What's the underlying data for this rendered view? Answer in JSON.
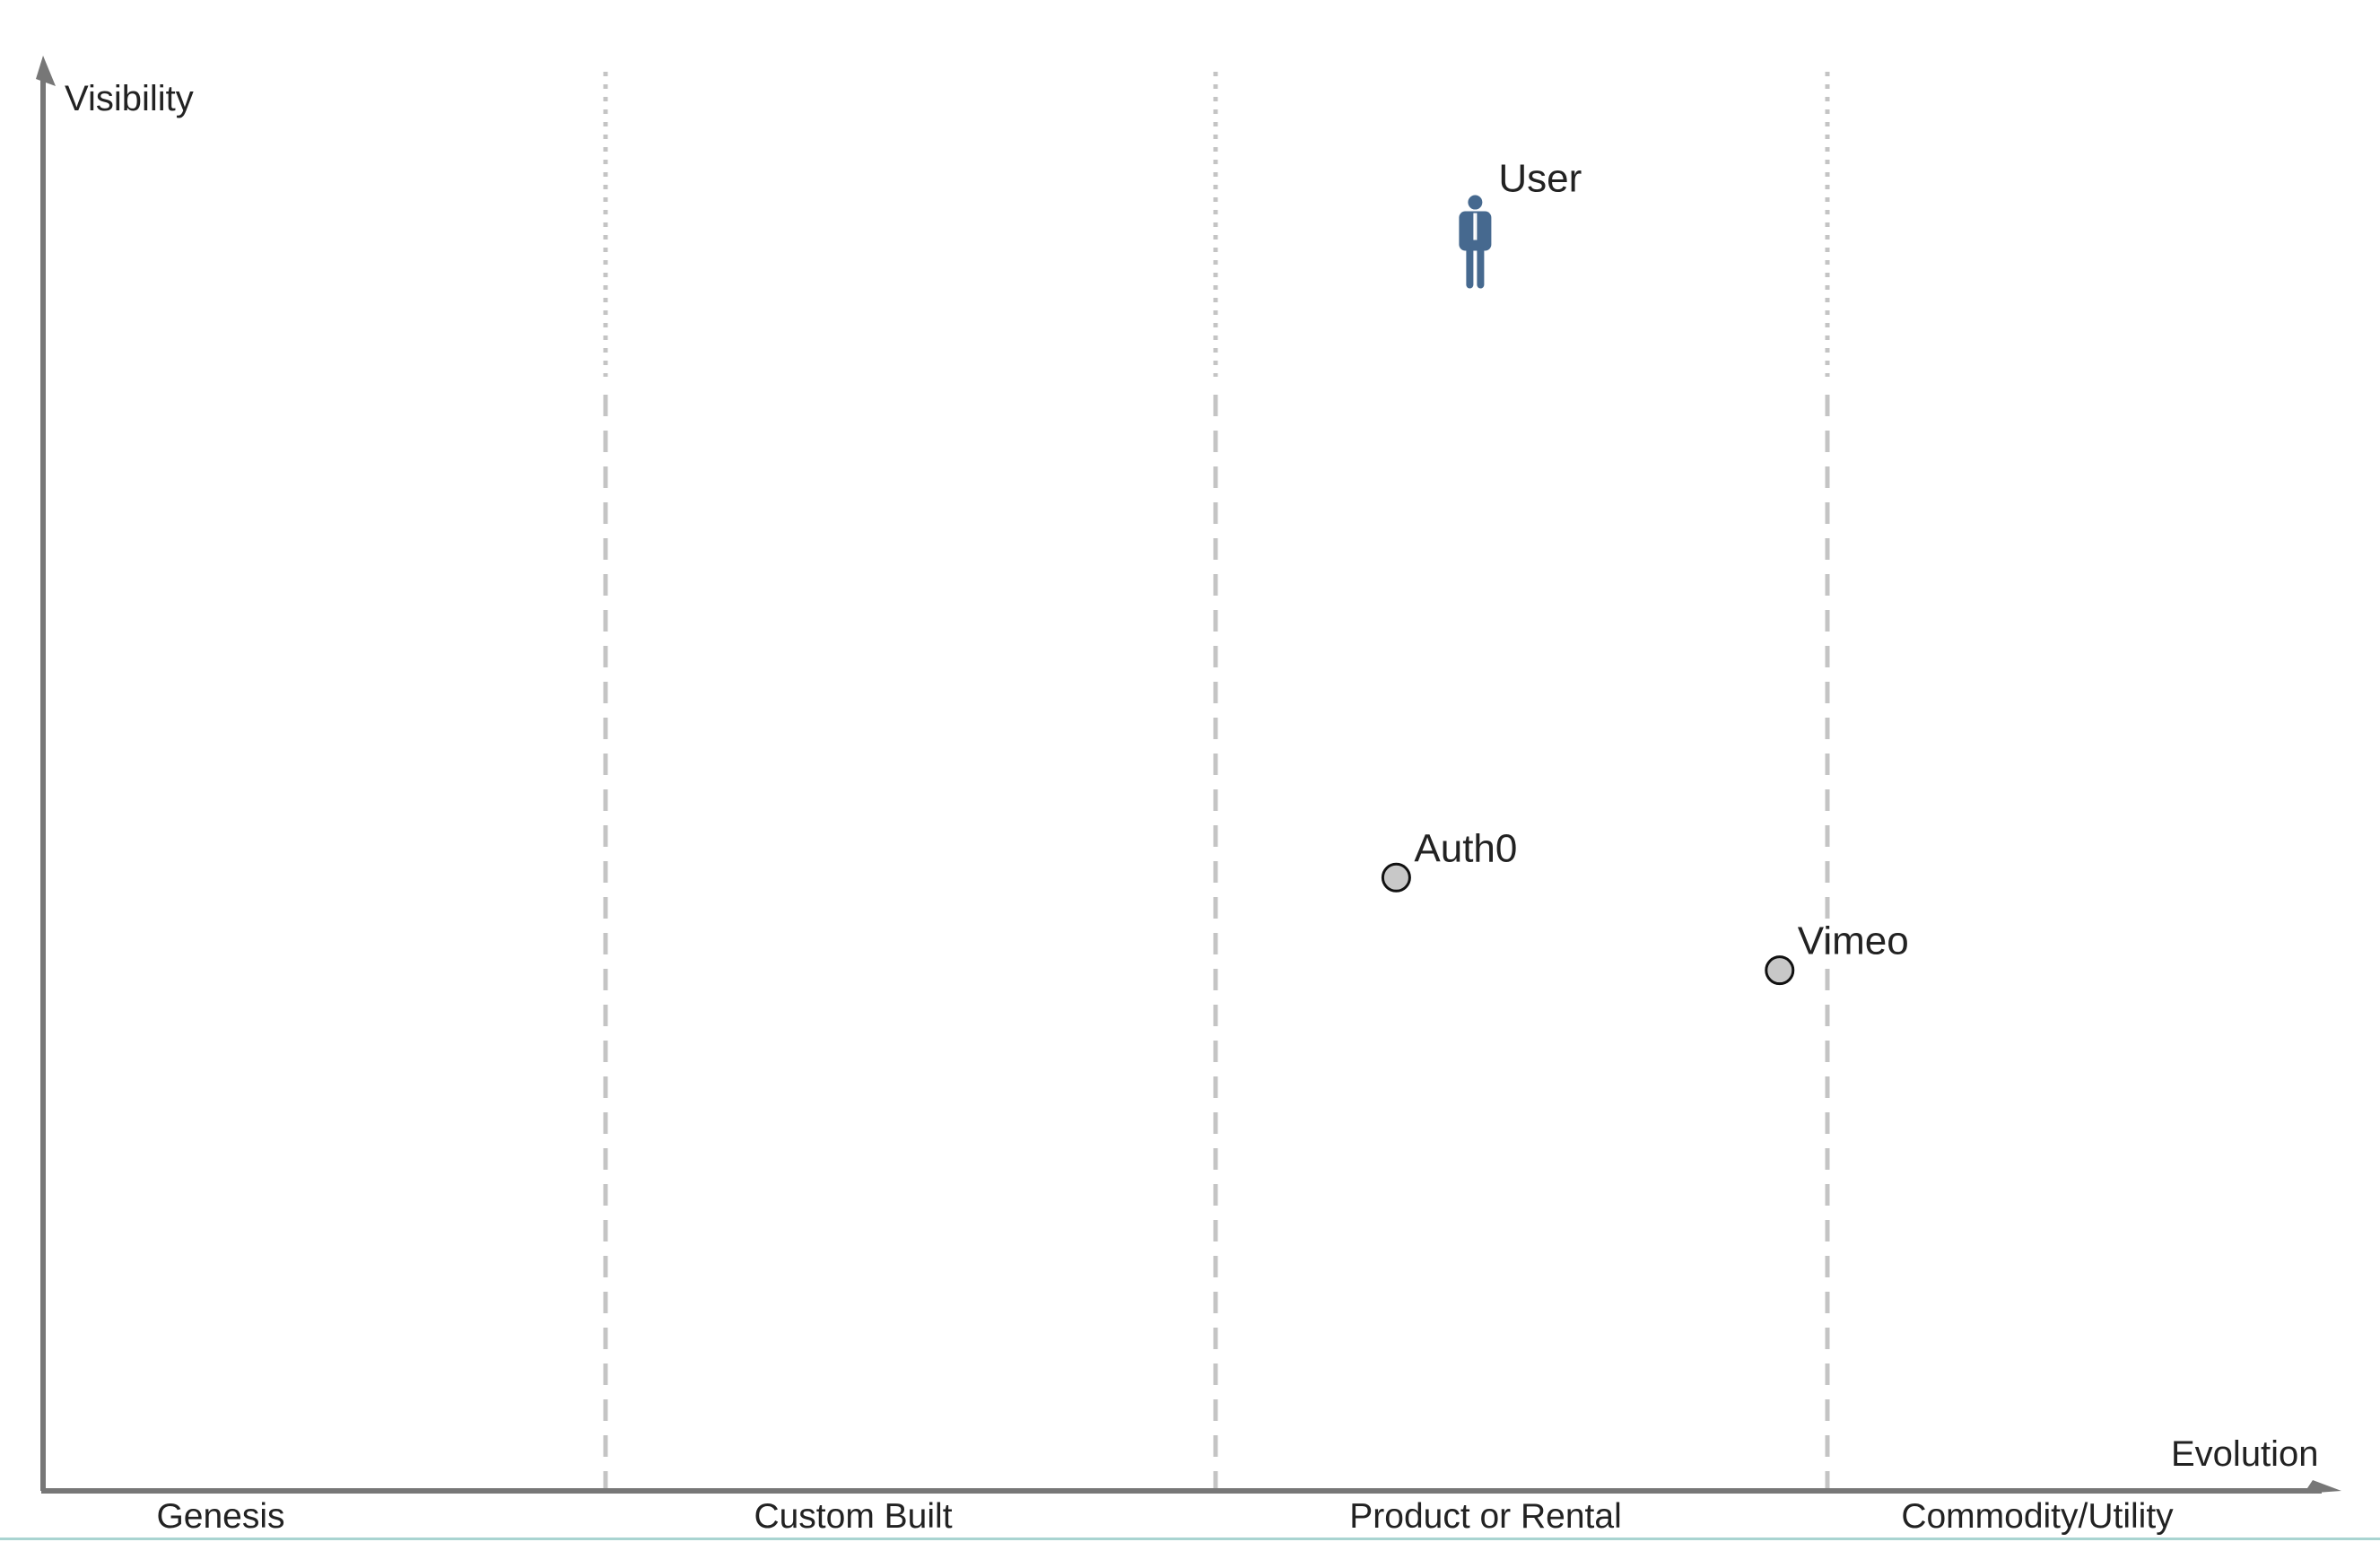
{
  "axes": {
    "y_label": "Visibility",
    "x_label": "Evolution"
  },
  "stages": [
    "Genesis",
    "Custom Built",
    "Product or Rental",
    "Commodity/Utility"
  ],
  "user": {
    "label": "User",
    "icon": "person-icon",
    "evolution": 0.635,
    "visibility": 0.955
  },
  "components": [
    {
      "id": "auth0",
      "label": "Auth0",
      "evolution": 0.6,
      "visibility": 0.43
    },
    {
      "id": "vimeo",
      "label": "Vimeo",
      "evolution": 0.77,
      "visibility": 0.365
    }
  ],
  "colors": {
    "axis": "#777777",
    "stage_divider": "#c4c4c4",
    "component_fill": "#c8c8c8",
    "component_stroke": "#111111",
    "user_icon": "#46698f",
    "text": "#222222"
  }
}
